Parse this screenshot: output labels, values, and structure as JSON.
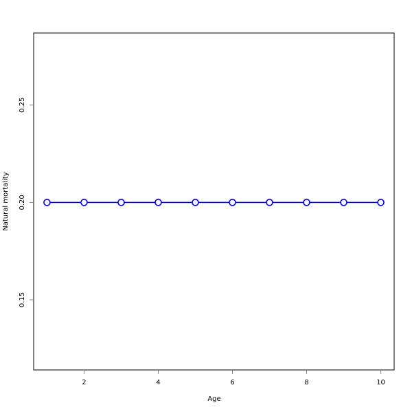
{
  "chart_data": {
    "type": "line",
    "title": "",
    "xlabel": "Age",
    "ylabel": "Natural mortality",
    "x": [
      1,
      2,
      3,
      4,
      5,
      6,
      7,
      8,
      9,
      10
    ],
    "series": [
      {
        "values": [
          0.2,
          0.2,
          0.2,
          0.2,
          0.2,
          0.2,
          0.2,
          0.2,
          0.2,
          0.2
        ],
        "color": "#0000ff",
        "marker": "open-circle"
      }
    ],
    "xlim": [
      0.64,
      10.36
    ],
    "ylim": [
      0.114,
      0.287
    ],
    "xticks": [
      2,
      4,
      6,
      8,
      10
    ],
    "xtick_labels": [
      "2",
      "4",
      "6",
      "8",
      "10"
    ],
    "yticks": [
      0.15,
      0.2,
      0.25
    ],
    "ytick_labels": [
      "0.15",
      "0.20",
      "0.25"
    ],
    "grid": false
  }
}
